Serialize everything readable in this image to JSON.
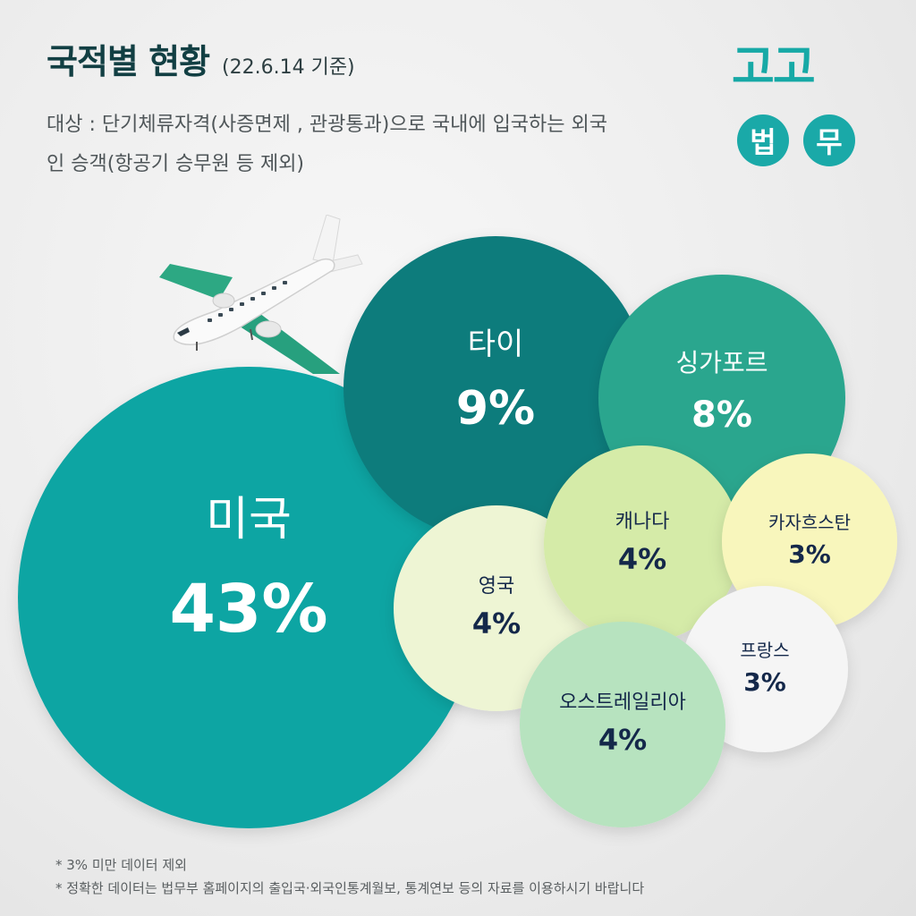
{
  "header": {
    "title": "국적별 현황",
    "date": "(22.6.14 기준)",
    "subtitle": "대상 : 단기체류자격(사증면제 , 관광통과)으로 국내에 입국하는 외국인 승객(항공기 승무원 등 제외)"
  },
  "logo": {
    "top": "고고",
    "c1": "법",
    "c2": "무"
  },
  "chart_data": {
    "type": "bubble",
    "series": [
      {
        "label": "미국",
        "value": 43,
        "display": "43%",
        "color": "#0da5a3",
        "text_color": "#ffffff"
      },
      {
        "label": "타이",
        "value": 9,
        "display": "9%",
        "color": "#0b7b7c",
        "text_color": "#ffffff"
      },
      {
        "label": "싱가포르",
        "value": 8,
        "display": "8%",
        "color": "#2aa68e",
        "text_color": "#ffffff"
      },
      {
        "label": "캐나다",
        "value": 4,
        "display": "4%",
        "color": "#d5eba8",
        "text_color": "#14284a"
      },
      {
        "label": "영국",
        "value": 4,
        "display": "4%",
        "color": "#eef5d4",
        "text_color": "#14284a"
      },
      {
        "label": "오스트레일리아",
        "value": 4,
        "display": "4%",
        "color": "#b7e3bf",
        "text_color": "#14284a"
      },
      {
        "label": "카자흐스탄",
        "value": 3,
        "display": "3%",
        "color": "#f8f6bc",
        "text_color": "#14284a"
      },
      {
        "label": "프랑스",
        "value": 3,
        "display": "3%",
        "color": "#f5f5f5",
        "text_color": "#14284a"
      }
    ]
  },
  "notes": [
    "* 3% 미만 데이터 제외",
    "* 정확한 데이터는 법무부 홈페이지의 출입국·외국인통계월보, 통계연보 등의 자료를 이용하시기 바랍니다"
  ]
}
